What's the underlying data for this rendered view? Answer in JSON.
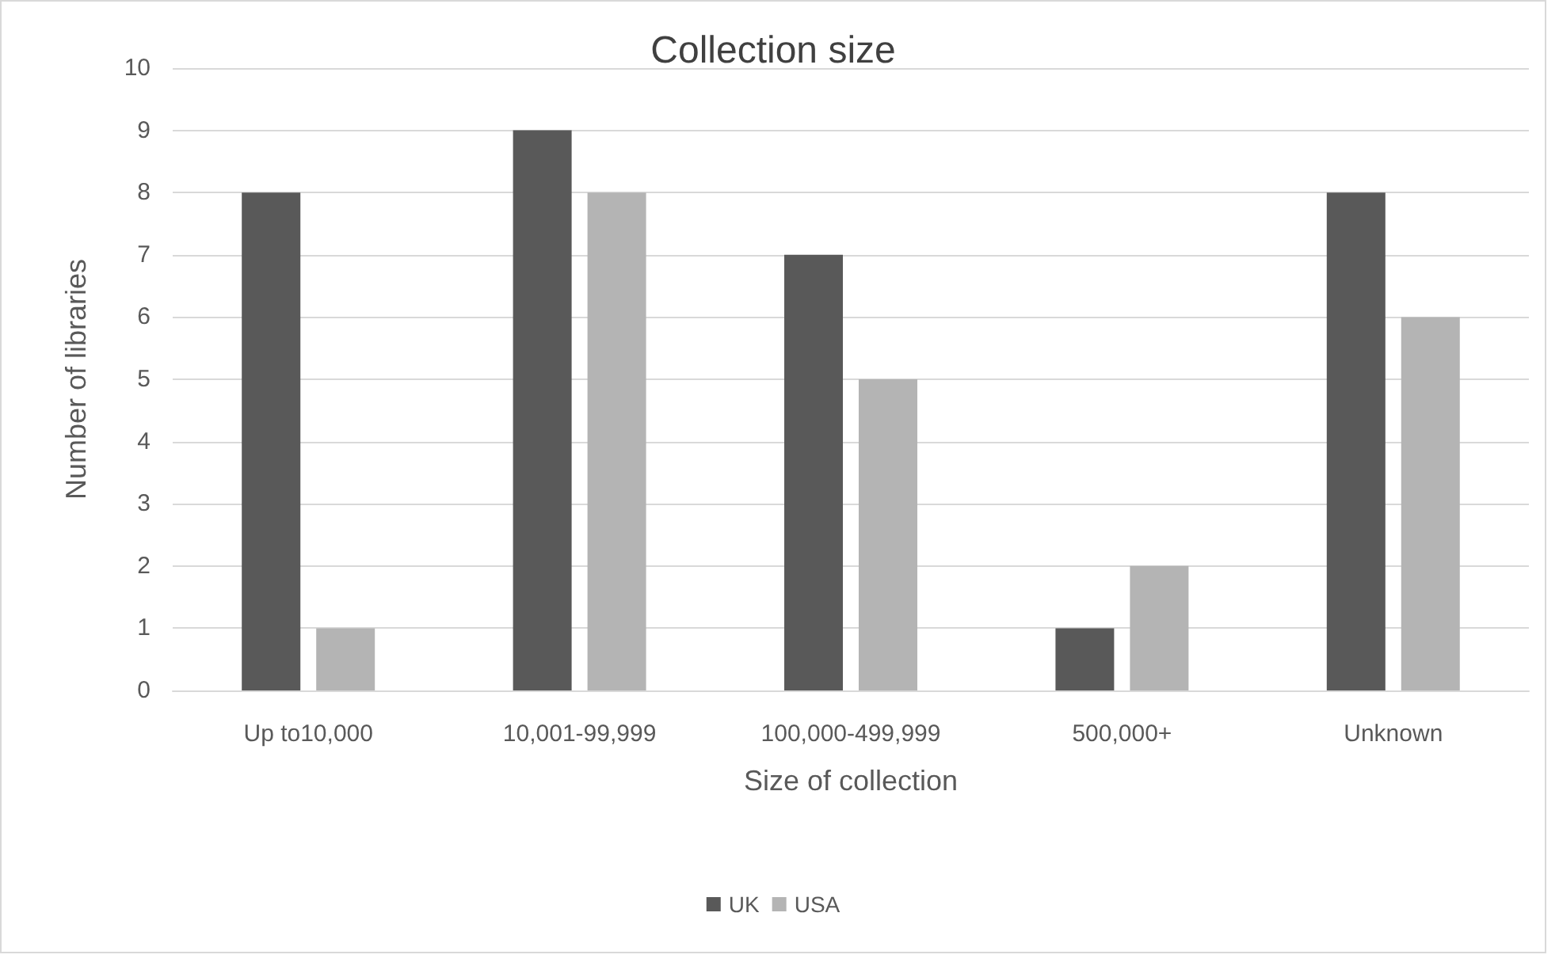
{
  "chart_data": {
    "type": "bar",
    "title": "Collection size",
    "xlabel": "Size of collection",
    "ylabel": "Number of libraries",
    "categories": [
      "Up to10,000",
      "10,001-99,999",
      "100,000-499,999",
      "500,000+",
      "Unknown"
    ],
    "series": [
      {
        "name": "UK",
        "color": "#595959",
        "values": [
          8,
          9,
          7,
          1,
          8
        ]
      },
      {
        "name": "USA",
        "color": "#b4b4b4",
        "values": [
          1,
          8,
          5,
          2,
          6
        ]
      }
    ],
    "ylim": [
      0,
      10
    ],
    "yticks": [
      0,
      1,
      2,
      3,
      4,
      5,
      6,
      7,
      8,
      9,
      10
    ],
    "grid": "y",
    "legend": "bottom"
  }
}
